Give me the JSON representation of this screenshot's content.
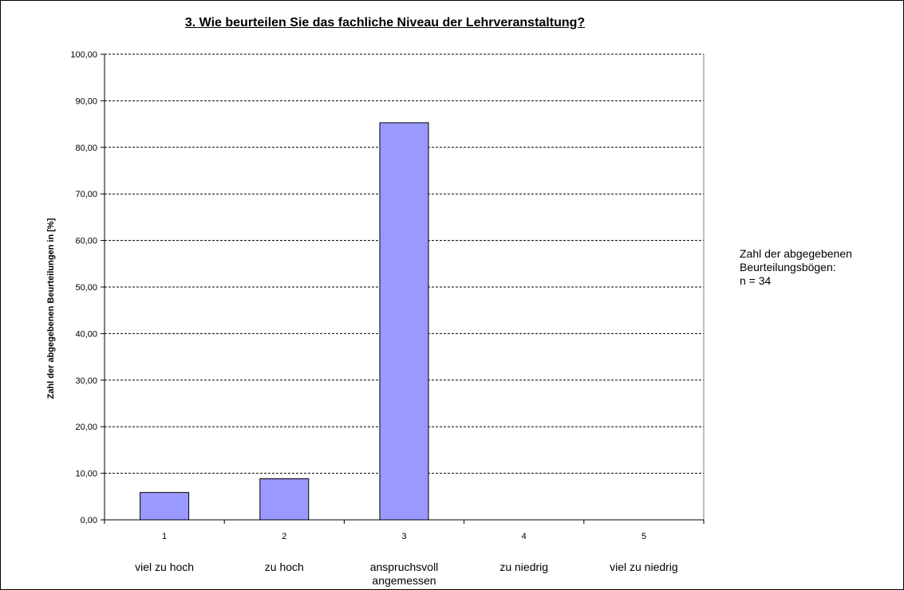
{
  "chart_data": {
    "type": "bar",
    "title": "3. Wie beurteilen Sie das fachliche Niveau der Lehrveranstaltung?",
    "xlabel": "",
    "ylabel": "Zahl der abgegebenen Beurteilungen in [%]",
    "categories": [
      "1",
      "2",
      "3",
      "4",
      "5"
    ],
    "category_names": [
      [
        "viel zu hoch"
      ],
      [
        "zu hoch"
      ],
      [
        "anspruchsvoll",
        "angemessen"
      ],
      [
        "zu niedrig"
      ],
      [
        "viel zu niedrig"
      ]
    ],
    "values": [
      5.88,
      8.82,
      85.29,
      0,
      0
    ],
    "ylim": [
      0,
      100
    ],
    "yticks": [
      "0,00",
      "10,00",
      "20,00",
      "30,00",
      "40,00",
      "50,00",
      "60,00",
      "70,00",
      "80,00",
      "90,00",
      "100,00"
    ],
    "grid": true,
    "bar_color": "#9999ff",
    "bar_edge_color": "#000000"
  },
  "note": {
    "lines": [
      "Zahl der abgegebenen",
      "Beurteilungsbögen:",
      "n = 34"
    ]
  }
}
